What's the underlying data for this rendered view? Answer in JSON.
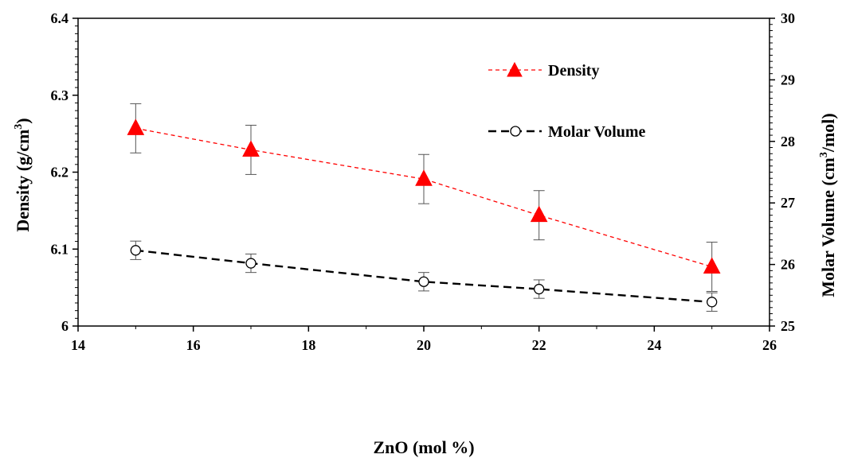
{
  "chart_data": {
    "type": "line",
    "xlabel": "ZnO (mol %)",
    "ylabel_left": {
      "text": "Density (g/cm",
      "sup": "3",
      "end": ")"
    },
    "ylabel_right": {
      "text": "Molar Volume (cm",
      "sup": "3",
      "end": "/mol)"
    },
    "xlim": [
      14,
      26
    ],
    "ylim_left": [
      6,
      6.4
    ],
    "ylim_right": [
      25,
      30
    ],
    "x_ticks": [
      14,
      16,
      18,
      20,
      22,
      24,
      26
    ],
    "y_ticks_left": [
      "6",
      "6.1",
      "6.2",
      "6.3",
      "6.4"
    ],
    "y_ticks_right": [
      "25",
      "26",
      "27",
      "28",
      "29",
      "30"
    ],
    "legend_position": "top-right",
    "series": [
      {
        "name": "Density",
        "axis": "left",
        "color": "#ff0000",
        "marker": "triangle-filled",
        "x": [
          15,
          17,
          20,
          22,
          25
        ],
        "y": [
          6.257,
          6.229,
          6.191,
          6.144,
          6.077
        ],
        "error": [
          0.032,
          0.032,
          0.032,
          0.032,
          0.032
        ]
      },
      {
        "name": "Molar Volume",
        "axis": "right",
        "color": "#000000",
        "marker": "circle-open",
        "x": [
          15,
          17,
          20,
          22,
          25
        ],
        "y": [
          26.23,
          26.02,
          25.72,
          25.6,
          25.39
        ],
        "error": [
          0.15,
          0.15,
          0.15,
          0.15,
          0.15
        ]
      }
    ]
  }
}
